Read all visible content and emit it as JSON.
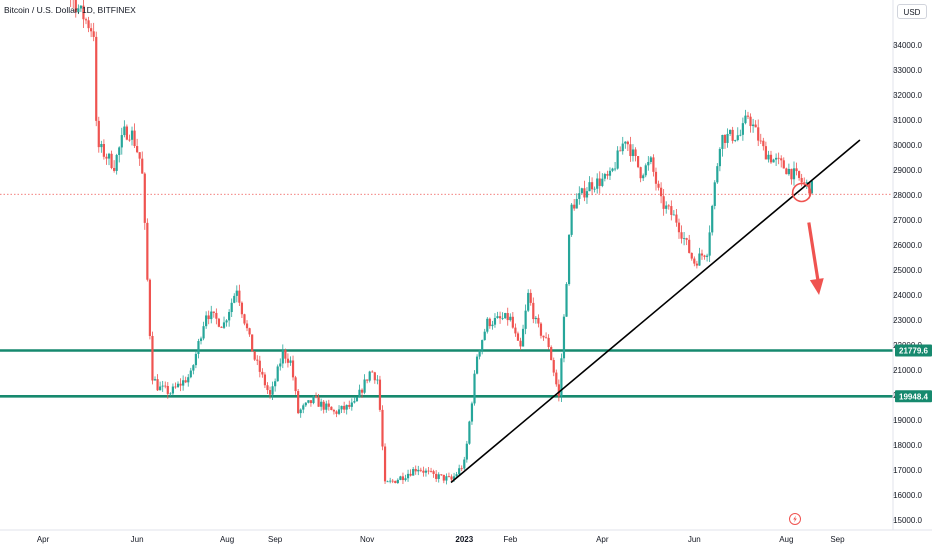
{
  "header": {
    "title": "Bitcoin / U.S. Dollar, 1D, BITFINEX",
    "currency_label": "USD"
  },
  "chart_data": {
    "type": "candlestick",
    "title": "Bitcoin / U.S. Dollar, 1D, BITFINEX",
    "x_tick_labels": [
      "Apr",
      "Jun",
      "Aug",
      "Sep",
      "Nov",
      "2023",
      "Feb",
      "Apr",
      "Jun",
      "Aug",
      "Sep"
    ],
    "y_tick_labels": [
      "34000.0",
      "33000.0",
      "32000.0",
      "31000.0",
      "30000.0",
      "29000.0",
      "28000.0",
      "27000.0",
      "26000.0",
      "25000.0",
      "24000.0",
      "23000.0",
      "22000.0",
      "21000.0",
      "20000.0",
      "19000.0",
      "18000.0",
      "17000.0",
      "16000.0",
      "15000.0"
    ],
    "ylim": [
      15000,
      34000
    ],
    "x_index_range": [
      0,
      760
    ],
    "up_color": "#26a69a",
    "down_color": "#ef5350",
    "support_levels": [
      {
        "value": 21779.6,
        "label": "21779.6",
        "color": "#16896e"
      },
      {
        "value": 19948.4,
        "label": "19948.4",
        "color": "#16896e"
      }
    ],
    "trendline": {
      "x": [
        402,
        802
      ],
      "y": [
        16500,
        30200
      ],
      "color": "#000000"
    },
    "current_price_level": 28030,
    "annotations": {
      "circle": {
        "x": 745,
        "y": 28100,
        "color": "#ef5350"
      },
      "arrow": {
        "x": [
          752,
          762
        ],
        "y": [
          26900,
          24000
        ],
        "color": "#ef5350"
      }
    },
    "price_path_anchors": [
      [
        0,
        38000
      ],
      [
        55,
        34500
      ],
      [
        58,
        30000
      ],
      [
        75,
        29200
      ],
      [
        85,
        30500
      ],
      [
        92,
        30500
      ],
      [
        102,
        29200
      ],
      [
        112,
        20800
      ],
      [
        118,
        20300
      ],
      [
        130,
        20100
      ],
      [
        150,
        20800
      ],
      [
        165,
        23300
      ],
      [
        182,
        22800
      ],
      [
        195,
        24300
      ],
      [
        200,
        23400
      ],
      [
        212,
        21500
      ],
      [
        228,
        19900
      ],
      [
        240,
        21700
      ],
      [
        248,
        21300
      ],
      [
        255,
        19300
      ],
      [
        270,
        19800
      ],
      [
        290,
        19300
      ],
      [
        310,
        19600
      ],
      [
        326,
        21000
      ],
      [
        333,
        20600
      ],
      [
        340,
        16400
      ],
      [
        355,
        16700
      ],
      [
        372,
        17100
      ],
      [
        385,
        16800
      ],
      [
        405,
        16600
      ],
      [
        418,
        17300
      ],
      [
        430,
        21600
      ],
      [
        440,
        22900
      ],
      [
        462,
        23100
      ],
      [
        472,
        21700
      ],
      [
        480,
        24000
      ],
      [
        488,
        22800
      ],
      [
        500,
        22000
      ],
      [
        510,
        19900
      ],
      [
        522,
        27500
      ],
      [
        540,
        28400
      ],
      [
        560,
        28700
      ],
      [
        575,
        30300
      ],
      [
        590,
        28900
      ],
      [
        600,
        29300
      ],
      [
        610,
        27700
      ],
      [
        625,
        27000
      ],
      [
        642,
        25300
      ],
      [
        655,
        25800
      ],
      [
        668,
        30300
      ],
      [
        688,
        30400
      ],
      [
        695,
        31200
      ],
      [
        710,
        29800
      ],
      [
        720,
        29400
      ],
      [
        735,
        29000
      ],
      [
        748,
        28500
      ],
      [
        756,
        28300
      ]
    ]
  }
}
